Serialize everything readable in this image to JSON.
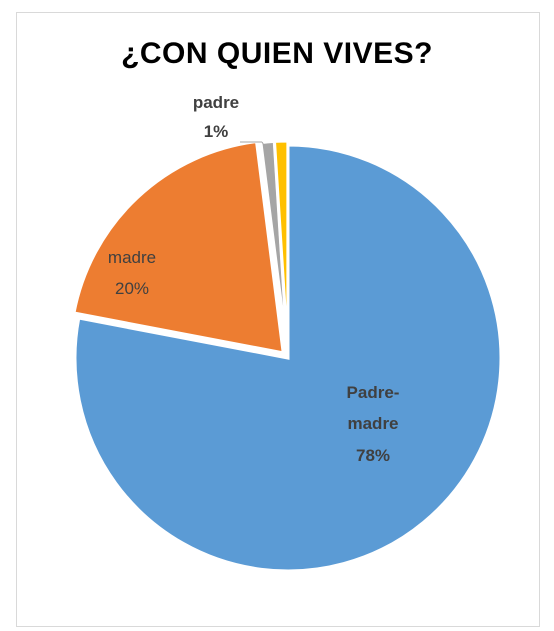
{
  "chart_data": {
    "type": "pie",
    "title": "¿CON QUIEN VIVES?",
    "slices": [
      {
        "label": "Padre-madre",
        "value": 78,
        "value_label": "78%",
        "color": "#5b9bd5"
      },
      {
        "label": "madre",
        "value": 20,
        "value_label": "20%",
        "color": "#ed7d31"
      },
      {
        "label": "padre",
        "value": 1,
        "value_label": "1%",
        "color": "#a5a5a5"
      },
      {
        "label": "",
        "value": 1,
        "value_label": "",
        "color": "#ffc000"
      }
    ],
    "legend": "none"
  }
}
